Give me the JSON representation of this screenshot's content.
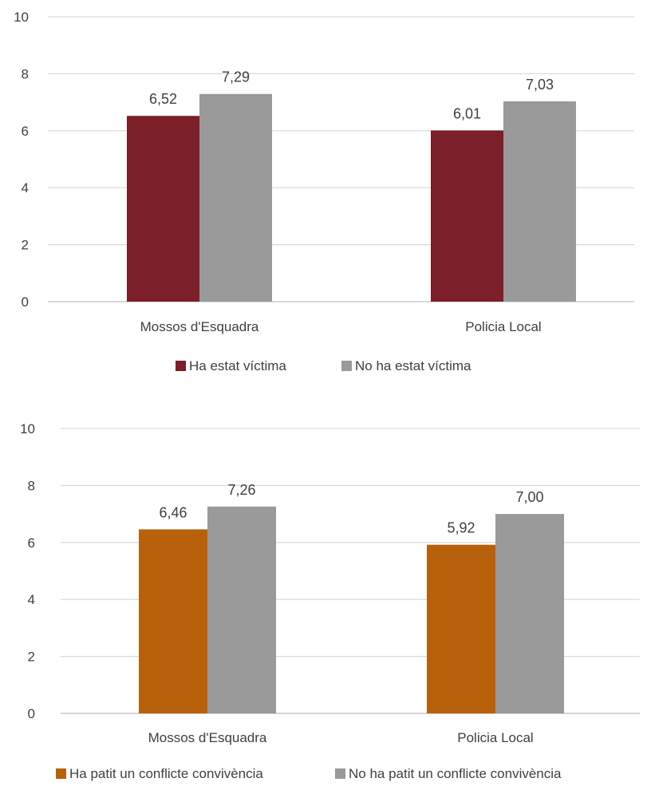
{
  "chart_data": [
    {
      "type": "bar",
      "categories": [
        "Mossos d'Esquadra",
        "Policia Local"
      ],
      "series": [
        {
          "name": "Ha estat víctima",
          "values": [
            6.52,
            6.01
          ],
          "labels": [
            "6,52",
            "6,01"
          ],
          "color": "#7B1F28"
        },
        {
          "name": "No ha estat víctima",
          "values": [
            7.29,
            7.03
          ],
          "labels": [
            "7,29",
            "7,03"
          ],
          "color": "#9A9A9A"
        }
      ],
      "yticks": [
        "0",
        "2",
        "4",
        "6",
        "8",
        "10"
      ],
      "ylim": [
        0,
        10
      ],
      "grid": true,
      "legend": "bottom"
    },
    {
      "type": "bar",
      "categories": [
        "Mossos d'Esquadra",
        "Policia Local"
      ],
      "series": [
        {
          "name": "Ha patit un conflicte convivència",
          "values": [
            6.46,
            5.92
          ],
          "labels": [
            "6,46",
            "5,92"
          ],
          "color": "#B8600B"
        },
        {
          "name": "No ha patit un conflicte convivència",
          "values": [
            7.26,
            7.0
          ],
          "labels": [
            "7,26",
            "7,00"
          ],
          "color": "#9A9A9A"
        }
      ],
      "yticks": [
        "0",
        "2",
        "4",
        "6",
        "8",
        "10"
      ],
      "ylim": [
        0,
        10
      ],
      "grid": true,
      "legend": "bottom"
    }
  ]
}
